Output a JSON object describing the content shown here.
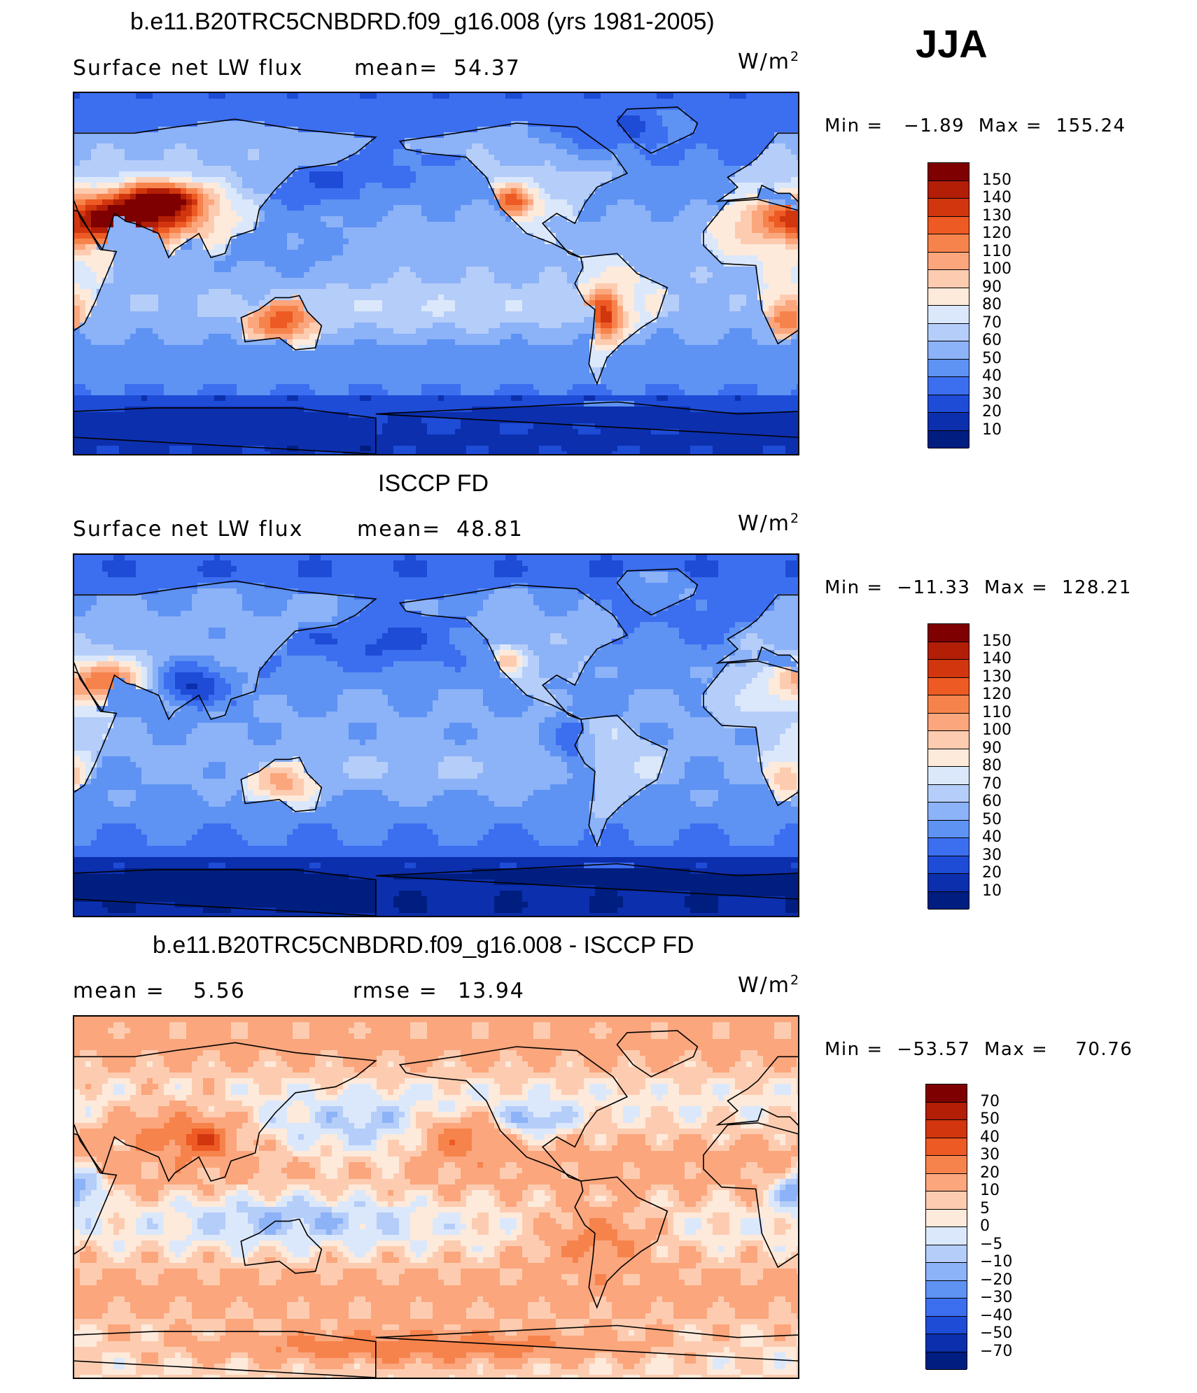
{
  "season": "JJA",
  "units_base": "W/m",
  "units_exp": "2",
  "panels": [
    {
      "title": "b.e11.B20TRC5CNBDRD.f09_g16.008 (yrs 1981-2005)",
      "left_label": "Surface net LW flux",
      "stat_label": "mean=",
      "stat_value": "54.37",
      "min_label": "Min =",
      "min_value": "−1.89",
      "max_label": "Max =",
      "max_value": "155.24",
      "colorbar": {
        "levels": [
          "150",
          "140",
          "130",
          "120",
          "110",
          "100",
          "90",
          "80",
          "70",
          "60",
          "50",
          "40",
          "30",
          "20",
          "10"
        ],
        "colors": [
          "#7f0000",
          "#b21e06",
          "#d2360e",
          "#ee5a24",
          "#f7834c",
          "#fba67d",
          "#fdccb0",
          "#fdeadb",
          "#dbe8fb",
          "#b5cdf9",
          "#8cb2f7",
          "#5e92f3",
          "#3c6ef0",
          "#1e4cd6",
          "#0c2fad",
          "#001e80"
        ]
      },
      "fields": {
        "type": "model"
      }
    },
    {
      "title": "ISCCP FD",
      "left_label": "Surface net LW flux",
      "stat_label": "mean=",
      "stat_value": "48.81",
      "min_label": "Min =",
      "min_value": "−11.33",
      "max_label": "Max =",
      "max_value": "128.21",
      "colorbar": {
        "levels": [
          "150",
          "140",
          "130",
          "120",
          "110",
          "100",
          "90",
          "80",
          "70",
          "60",
          "50",
          "40",
          "30",
          "20",
          "10"
        ],
        "colors": [
          "#7f0000",
          "#b21e06",
          "#d2360e",
          "#ee5a24",
          "#f7834c",
          "#fba67d",
          "#fdccb0",
          "#fdeadb",
          "#dbe8fb",
          "#b5cdf9",
          "#8cb2f7",
          "#5e92f3",
          "#3c6ef0",
          "#1e4cd6",
          "#0c2fad",
          "#001e80"
        ]
      },
      "fields": {
        "type": "obs"
      }
    },
    {
      "title": "b.e11.B20TRC5CNBDRD.f09_g16.008 - ISCCP FD",
      "left_label": "mean =",
      "left_value": "5.56",
      "stat_label": "rmse =",
      "stat_value": "13.94",
      "min_label": "Min =",
      "min_value": "−53.57",
      "max_label": "Max =",
      "max_value": "70.76",
      "colorbar": {
        "levels": [
          "70",
          "50",
          "40",
          "30",
          "20",
          "10",
          "5",
          "0",
          "−5",
          "−10",
          "−20",
          "−30",
          "−40",
          "−50",
          "−70"
        ],
        "colors": [
          "#7f0000",
          "#b21e06",
          "#d2360e",
          "#ee5a24",
          "#f7834c",
          "#fba67d",
          "#fdccb0",
          "#fdeadb",
          "#dbe8fb",
          "#b5cdf9",
          "#8cb2f7",
          "#5e92f3",
          "#3c6ef0",
          "#1e4cd6",
          "#0c2fad",
          "#001e80"
        ]
      },
      "fields": {
        "type": "diff"
      }
    }
  ],
  "chart_data": [
    {
      "type": "heatmap",
      "title": "b.e11.B20TRC5CNBDRD.f09_g16.008 (yrs 1981-2005)",
      "variable": "Surface net LW flux",
      "mean": 54.37,
      "min": -1.89,
      "max": 155.24,
      "units": "W/m2",
      "season": "JJA",
      "contour_levels": [
        10,
        20,
        30,
        40,
        50,
        60,
        70,
        80,
        90,
        100,
        110,
        120,
        130,
        140,
        150
      ]
    },
    {
      "type": "heatmap",
      "title": "ISCCP FD",
      "variable": "Surface net LW flux",
      "mean": 48.81,
      "min": -11.33,
      "max": 128.21,
      "units": "W/m2",
      "season": "JJA",
      "contour_levels": [
        10,
        20,
        30,
        40,
        50,
        60,
        70,
        80,
        90,
        100,
        110,
        120,
        130,
        140,
        150
      ]
    },
    {
      "type": "heatmap",
      "title": "b.e11.B20TRC5CNBDRD.f09_g16.008 - ISCCP FD",
      "mean": 5.56,
      "rmse": 13.94,
      "min": -53.57,
      "max": 70.76,
      "units": "W/m2",
      "season": "JJA",
      "contour_levels": [
        -70,
        -50,
        -40,
        -30,
        -20,
        -10,
        -5,
        0,
        5,
        10,
        20,
        30,
        40,
        50,
        70
      ]
    }
  ]
}
